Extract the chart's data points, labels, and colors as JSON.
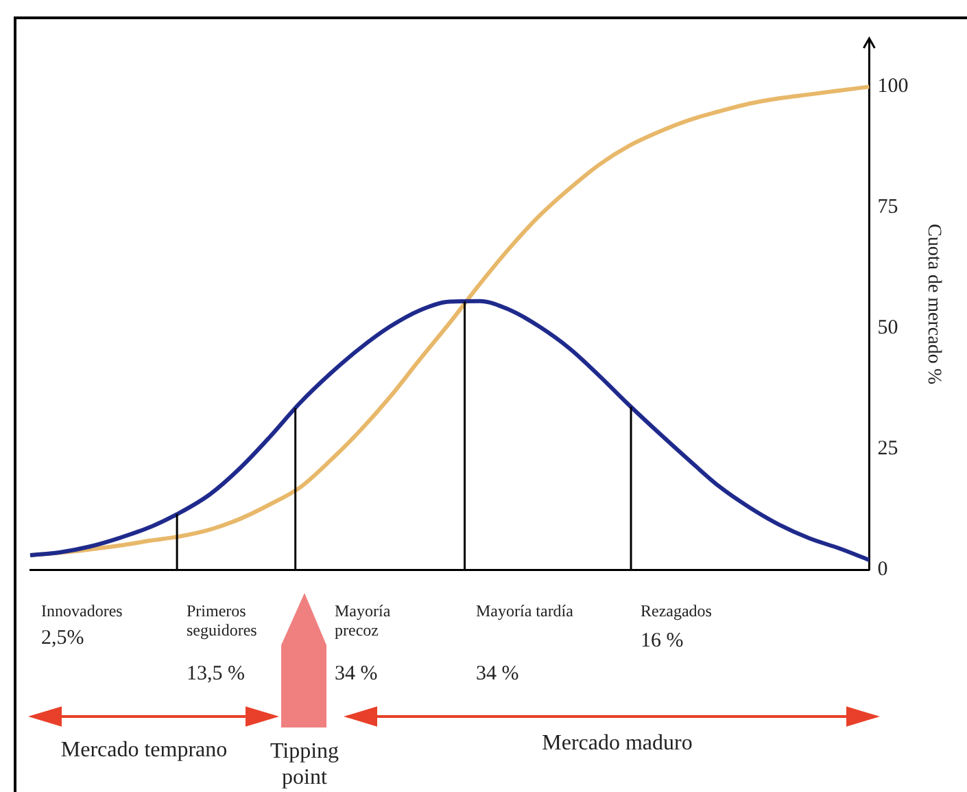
{
  "chart_data": {
    "type": "line",
    "ylabel": "Cuota de mercado %",
    "categories": [
      null,
      null,
      null,
      null,
      null,
      null,
      null,
      null,
      null,
      null,
      null,
      null,
      null,
      null,
      null,
      null,
      null,
      null,
      null,
      null,
      null,
      null,
      null,
      null,
      null,
      null,
      null,
      null,
      null
    ],
    "series": [
      {
        "color": "#1f2a8c",
        "values": [
          3,
          3.6,
          4.8,
          6.6,
          8.8,
          11.8,
          15.6,
          21,
          27.5,
          34.5,
          40.5,
          45.8,
          50.3,
          53.7,
          55.5,
          55.6,
          53.8,
          50.3,
          45.8,
          40.1,
          34,
          28.2,
          22.6,
          17.2,
          12.9,
          9.3,
          6.5,
          4.4,
          2
        ]
      },
      {
        "color": "#e8b86a",
        "values": [
          3,
          3.5,
          4.2,
          5,
          6,
          6.9,
          8.3,
          10.5,
          13.5,
          17,
          22.5,
          28.7,
          35.7,
          43.5,
          51.1,
          59.1,
          66.6,
          73.3,
          78.9,
          83.9,
          87.8,
          90.7,
          93.1,
          94.9,
          96.5,
          97.6,
          98.4,
          99.2,
          100
        ]
      }
    ],
    "ylim": [
      0,
      110
    ],
    "yticks": [
      0,
      25,
      50,
      75,
      100
    ],
    "grid": false,
    "legend": false,
    "marker": "none",
    "line_style": "solid",
    "tick_labels": "y",
    "annotations": [
      "Innovadores",
      "2,5%",
      "Primeros seguidores",
      "13,5 %",
      "Mayoría precoz",
      "34 %",
      "Mayoría tardía",
      "34 %",
      "Rezagados",
      "16 %",
      "Mercado temprano",
      "Tipping point",
      "Mercado maduro"
    ]
  }
}
